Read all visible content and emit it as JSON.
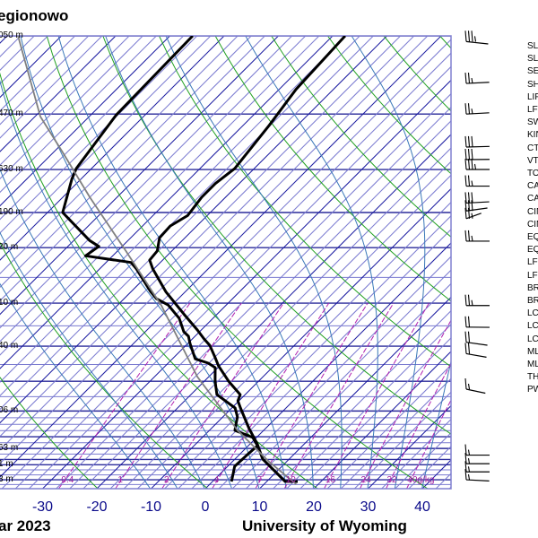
{
  "header": {
    "station_title": "egionowo"
  },
  "footer": {
    "date_fragment": "ar 2023",
    "credit": "University of Wyoming"
  },
  "height_labels": [
    {
      "pressure": 100,
      "text": "050 m"
    },
    {
      "pressure": 150,
      "text": "470 m"
    },
    {
      "pressure": 200,
      "text": "630 m"
    },
    {
      "pressure": 250,
      "text": "190 m"
    },
    {
      "pressure": 300,
      "text": "20 m"
    },
    {
      "pressure": 400,
      "text": "10 m"
    },
    {
      "pressure": 500,
      "text": "40 m"
    },
    {
      "pressure": 700,
      "text": "06 m"
    },
    {
      "pressure": 850,
      "text": "63 m"
    },
    {
      "pressure": 925,
      "text": "1 m"
    },
    {
      "pressure": 1000,
      "text": "3 m"
    }
  ],
  "indices_labels": [
    "SLAT",
    "SLON",
    "SELV",
    "SHOW",
    "LIFT",
    "LFTV",
    "SWET",
    "KINX",
    "CTOT",
    "VTOT",
    "TOTL",
    "CAPE",
    "CAPV",
    "CINS",
    "CINV",
    "EQLV",
    "EQTV",
    "LFCT",
    "LFCV",
    "BRCH",
    "BRCV",
    "LCLT",
    "LCLP",
    "LCLV",
    "MLTH",
    "MLMR",
    "THTK",
    "PWAT"
  ],
  "colors": {
    "isotherm": "#1a1aa0",
    "isotherm_light": "#7a7ad0",
    "isobar": "#2a2a9a",
    "dry_adiabat": "#20a020",
    "moist_adiabat": "#3a78b8",
    "mixing_ratio": "#b020b0",
    "temperature": "#000000",
    "dewpoint": "#000000",
    "parcel": "#808080"
  },
  "chart_data": {
    "type": "line",
    "subtype": "skew-t log-p",
    "xlabel": "Temperature (°C)",
    "ylabel": "Pressure (hPa)",
    "xlim_at_bottom": [
      -38,
      45
    ],
    "ylim": [
      1050,
      100
    ],
    "x_ticks": [
      -30,
      -20,
      -10,
      0,
      10,
      20,
      30,
      40
    ],
    "x_tick_labels": [
      "-30",
      "-20",
      "-10",
      "0",
      "10",
      "20",
      "30",
      "40"
    ],
    "mixing_ratio_labels": [
      {
        "w": 0.4,
        "text": "0.4"
      },
      {
        "w": 1,
        "text": "1"
      },
      {
        "w": 2,
        "text": "2"
      },
      {
        "w": 4,
        "text": "4"
      },
      {
        "w": 7,
        "text": "7"
      },
      {
        "w": 10,
        "text": "10"
      },
      {
        "w": 16,
        "text": "16"
      },
      {
        "w": 24,
        "text": "24"
      },
      {
        "w": 32,
        "text": "32"
      },
      {
        "w": 40,
        "text": "40g/kg"
      }
    ],
    "series": [
      {
        "name": "temperature",
        "points": [
          [
            1009,
            15.7
          ],
          [
            1009,
            13.4
          ],
          [
            898,
            5.1
          ],
          [
            830,
            1.3
          ],
          [
            767,
            -3.0
          ],
          [
            689,
            -8.4
          ],
          [
            664,
            -10.2
          ],
          [
            643,
            -10.9
          ],
          [
            600,
            -15.5
          ],
          [
            554,
            -20.2
          ],
          [
            529,
            -22.5
          ],
          [
            498,
            -25.6
          ],
          [
            482,
            -27.8
          ],
          [
            460,
            -30.7
          ],
          [
            423,
            -36.2
          ],
          [
            377,
            -43.6
          ],
          [
            335,
            -50.2
          ],
          [
            320,
            -52.4
          ],
          [
            305,
            -52.7
          ],
          [
            285,
            -54.7
          ],
          [
            268,
            -54.9
          ],
          [
            254,
            -53.6
          ],
          [
            231,
            -54.4
          ],
          [
            215,
            -54.4
          ],
          [
            199,
            -53.6
          ],
          [
            159,
            -55.2
          ],
          [
            132,
            -56.9
          ],
          [
            100,
            -57.7
          ]
        ]
      },
      {
        "name": "dewpoint",
        "points": [
          [
            1009,
            3.5
          ],
          [
            933,
            1.3
          ],
          [
            870,
            1.5
          ],
          [
            838,
            1.7
          ],
          [
            803,
            -0.7
          ],
          [
            774,
            -5.3
          ],
          [
            756,
            -6.0
          ],
          [
            722,
            -7.3
          ],
          [
            689,
            -9.4
          ],
          [
            643,
            -15.2
          ],
          [
            600,
            -18.0
          ],
          [
            559,
            -20.5
          ],
          [
            546,
            -22.6
          ],
          [
            534,
            -25.8
          ],
          [
            493,
            -29.6
          ],
          [
            475,
            -31.2
          ],
          [
            464,
            -32.9
          ],
          [
            433,
            -36.2
          ],
          [
            404,
            -40.7
          ],
          [
            391,
            -44.0
          ],
          [
            377,
            -46.4
          ],
          [
            335,
            -53.2
          ],
          [
            324,
            -55.4
          ],
          [
            313,
            -65.0
          ],
          [
            298,
            -64.3
          ],
          [
            289,
            -67.1
          ],
          [
            250,
            -77.2
          ],
          [
            210,
            -81.7
          ],
          [
            199,
            -82.8
          ],
          [
            151,
            -85.3
          ],
          [
            100,
            -85.8
          ]
        ]
      },
      {
        "name": "parcel",
        "points": [
          [
            1023,
            15.9
          ],
          [
            911,
            6.8
          ],
          [
            774,
            -4.8
          ],
          [
            586,
            -22.1
          ],
          [
            404,
            -42.0
          ],
          [
            305,
            -58.5
          ],
          [
            231,
            -75.0
          ],
          [
            183,
            -88.3
          ],
          [
            152,
            -99.0
          ],
          [
            100,
            -118
          ]
        ]
      }
    ],
    "wind_barbs": [
      {
        "pressure": 103,
        "dir": 250,
        "kt": 35
      },
      {
        "pressure": 128,
        "dir": 280,
        "kt": 25
      },
      {
        "pressure": 150,
        "dir": 280,
        "kt": 25
      },
      {
        "pressure": 178,
        "dir": 275,
        "kt": 30
      },
      {
        "pressure": 190,
        "dir": 272,
        "kt": 30
      },
      {
        "pressure": 200,
        "dir": 270,
        "kt": 35
      },
      {
        "pressure": 218,
        "dir": 270,
        "kt": 25
      },
      {
        "pressure": 238,
        "dir": 280,
        "kt": 30
      },
      {
        "pressure": 248,
        "dir": 295,
        "kt": 30
      },
      {
        "pressure": 258,
        "dir": 320,
        "kt": 25
      },
      {
        "pressure": 290,
        "dir": 270,
        "kt": 25
      },
      {
        "pressure": 405,
        "dir": 270,
        "kt": 25
      },
      {
        "pressure": 453,
        "dir": 268,
        "kt": 20
      },
      {
        "pressure": 490,
        "dir": 245,
        "kt": 20
      },
      {
        "pressure": 520,
        "dir": 240,
        "kt": 20
      },
      {
        "pressure": 625,
        "dir": 235,
        "kt": 15
      },
      {
        "pressure": 880,
        "dir": 270,
        "kt": 15
      },
      {
        "pressure": 920,
        "dir": 270,
        "kt": 15
      },
      {
        "pressure": 960,
        "dir": 270,
        "kt": 15
      },
      {
        "pressure": 1000,
        "dir": 260,
        "kt": 15
      }
    ]
  }
}
